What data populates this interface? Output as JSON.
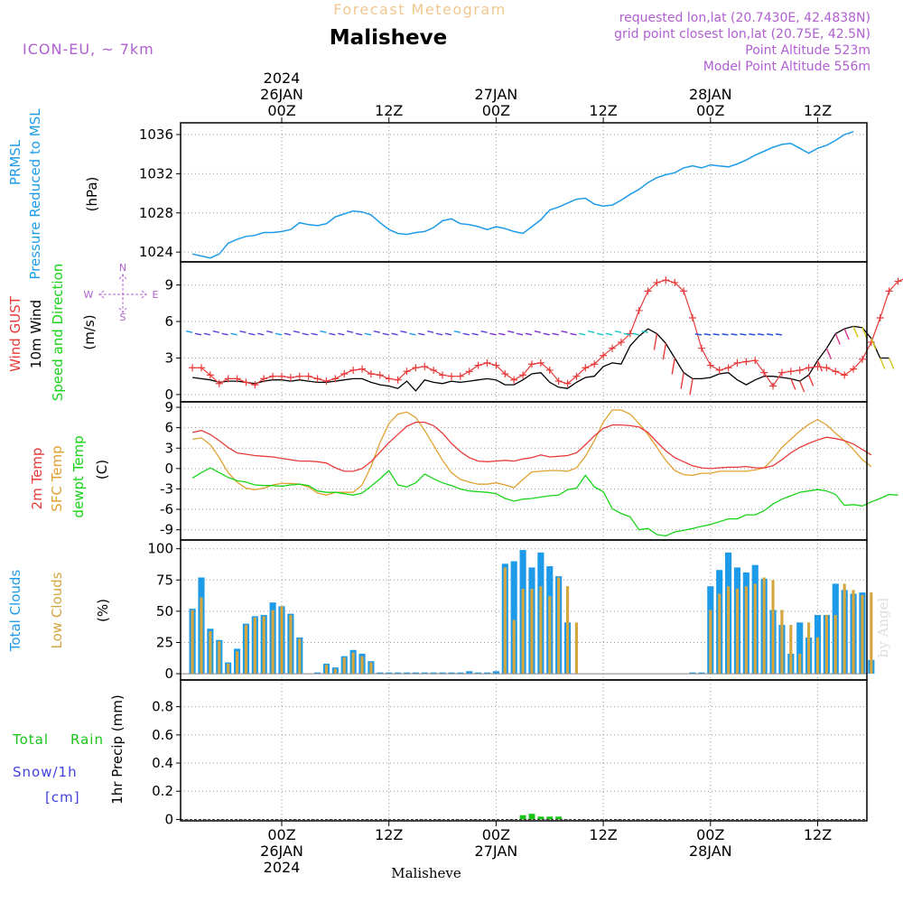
{
  "header": {
    "forecast_title": "Forecast Meteogram",
    "location": "Malisheve",
    "model": "ICON-EU, ~ 7km",
    "requested": "requested lon,lat (20.7430E, 42.4838N)",
    "grid_point": "grid point closest lon,lat (20.75E, 42.5N)",
    "point_altitude": "Point Altitude 523m",
    "model_altitude": "Model Point Altitude 556m",
    "footer_location": "Malisheve",
    "credit": "by Angel"
  },
  "colors": {
    "pressure": "#1e9be8",
    "gust": "#e83a3a",
    "wind": "#000000",
    "temp2m": "#e83a3a",
    "sfc": "#e0a030",
    "dewpt": "#18d418",
    "total_cloud": "#1e9be8",
    "low_cloud": "#d4a640",
    "rain": "#18c418",
    "snow": "#4040e0",
    "purple": "#b060d0",
    "title_orange": "#f0c890"
  },
  "time_axis": {
    "top_labels": [
      {
        "line1": "2024",
        "line2": "26JAN",
        "line3": "00Z",
        "hour": 0
      },
      {
        "line1": "",
        "line2": "",
        "line3": "12Z",
        "hour": 12
      },
      {
        "line1": "",
        "line2": "27JAN",
        "line3": "00Z",
        "hour": 24
      },
      {
        "line1": "",
        "line2": "",
        "line3": "12Z",
        "hour": 36
      },
      {
        "line1": "",
        "line2": "28JAN",
        "line3": "00Z",
        "hour": 48
      },
      {
        "line1": "",
        "line2": "",
        "line3": "12Z",
        "hour": 60
      }
    ],
    "bottom_labels": [
      {
        "line1": "00Z",
        "line2": "26JAN",
        "line3": "2024",
        "hour": 0
      },
      {
        "line1": "12Z",
        "line2": "",
        "line3": "",
        "hour": 12
      },
      {
        "line1": "00Z",
        "line2": "27JAN",
        "line3": "",
        "hour": 24
      },
      {
        "line1": "12Z",
        "line2": "",
        "line3": "",
        "hour": 36
      },
      {
        "line1": "00Z",
        "line2": "28JAN",
        "line3": "",
        "hour": 48
      },
      {
        "line1": "12Z",
        "line2": "",
        "line3": "",
        "hour": 60
      }
    ]
  },
  "panels": {
    "pressure": {
      "label1": "PRMSL",
      "label2": "Pressure Reduced to MSL",
      "unit": "(hPa)",
      "ticks": [
        "1024",
        "1028",
        "1032",
        "1036"
      ]
    },
    "wind": {
      "label_gust": "Wind GUST",
      "label_wind": "10m Wind",
      "label_dir": "Speed and Direction",
      "unit": "(m/s)",
      "ticks": [
        "0",
        "3",
        "6",
        "9"
      ],
      "compass_w": "W",
      "compass_e": "E",
      "compass_n": "N",
      "compass_s": "S"
    },
    "temp": {
      "label_2m": "2m Temp",
      "label_sfc": "SFC Temp",
      "label_dew": "dewpt Temp",
      "unit": "(C)",
      "ticks": [
        "-9",
        "-6",
        "-3",
        "0",
        "3",
        "6",
        "9"
      ]
    },
    "cloud": {
      "label_total": "Total Clouds",
      "label_low": "Low Clouds",
      "unit": "(%)",
      "ticks": [
        "0",
        "25",
        "50",
        "75",
        "100"
      ]
    },
    "precip": {
      "label_total": "Total",
      "label_rain": "Rain",
      "label_snow": "Snow/1h",
      "label_cm": "[cm]",
      "label_axis": "1hr Precip (mm)",
      "ticks": [
        "0",
        "0.2",
        "0.4",
        "0.6",
        "0.8"
      ]
    }
  },
  "chart_data": [
    {
      "type": "line",
      "name": "PRMSL",
      "x_start_hour": -10,
      "x_step": 1,
      "ylim": [
        1023,
        1037.2
      ],
      "values": [
        1023.8,
        1023.6,
        1023.4,
        1023.8,
        1024.9,
        1025.3,
        1025.6,
        1025.7,
        1026.0,
        1026.0,
        1026.1,
        1026.3,
        1027.0,
        1026.8,
        1026.7,
        1026.9,
        1027.6,
        1027.9,
        1028.2,
        1028.1,
        1027.8,
        1027.0,
        1026.3,
        1025.9,
        1025.8,
        1026.0,
        1026.1,
        1026.5,
        1027.2,
        1027.4,
        1026.9,
        1026.8,
        1026.6,
        1026.3,
        1026.6,
        1026.4,
        1026.1,
        1025.9,
        1026.6,
        1027.3,
        1028.3,
        1028.6,
        1029.0,
        1029.4,
        1029.5,
        1028.9,
        1028.7,
        1028.8,
        1029.3,
        1029.9,
        1030.4,
        1031.1,
        1031.6,
        1031.9,
        1032.1,
        1032.6,
        1032.8,
        1032.6,
        1032.9,
        1032.8,
        1032.7,
        1033.0,
        1033.4,
        1033.9,
        1034.3,
        1034.7,
        1035.0,
        1035.1,
        1034.6,
        1034.1,
        1034.6,
        1034.9,
        1035.4,
        1036.0,
        1036.3
      ]
    },
    {
      "type": "line",
      "name": "Wind GUST",
      "x_start_hour": -10,
      "x_step": 1,
      "ylim": [
        -0.6,
        10.9
      ],
      "gust": [
        2.2,
        2.2,
        1.6,
        0.9,
        1.3,
        1.3,
        1.0,
        0.8,
        1.3,
        1.5,
        1.5,
        1.4,
        1.5,
        1.5,
        1.3,
        1.1,
        1.3,
        1.7,
        2.0,
        2.1,
        1.7,
        1.6,
        1.3,
        1.2,
        1.9,
        2.2,
        2.3,
        2.0,
        1.6,
        1.5,
        1.5,
        1.9,
        2.4,
        2.6,
        2.4,
        1.7,
        1.2,
        1.6,
        2.5,
        2.6,
        2.0,
        1.1,
        0.9,
        1.5,
        2.2,
        2.5,
        3.2,
        3.8,
        4.3,
        5.0,
        6.9,
        8.5,
        9.2,
        9.4,
        9.2,
        8.5,
        6.3,
        3.8,
        2.4,
        2.0,
        2.2,
        2.6,
        2.7,
        2.8,
        1.8,
        0.7,
        1.8,
        1.9,
        2.0,
        2.2,
        2.3,
        2.2,
        1.9,
        1.6,
        2.1,
        2.9,
        4.3,
        6.3,
        8.5,
        9.3,
        9.6,
        9.9,
        9.6,
        7.6,
        6.3
      ],
      "wind": [
        1.4,
        1.3,
        1.2,
        1.0,
        1.1,
        1.1,
        1.0,
        0.9,
        1.1,
        1.2,
        1.2,
        1.1,
        1.2,
        1.1,
        1.0,
        1.0,
        1.1,
        1.2,
        1.3,
        1.3,
        1.0,
        0.8,
        0.7,
        0.5,
        1.1,
        0.3,
        1.2,
        1.0,
        0.9,
        1.1,
        1.0,
        1.1,
        1.2,
        1.3,
        1.2,
        0.8,
        0.8,
        1.2,
        1.7,
        1.8,
        1.0,
        0.6,
        0.5,
        1.0,
        1.4,
        1.5,
        2.3,
        2.6,
        2.5,
        4.0,
        4.8,
        5.4,
        5.0,
        4.2,
        3.0,
        1.8,
        1.3,
        1.3,
        1.4,
        1.7,
        1.8,
        1.2,
        0.8,
        1.2,
        1.5,
        1.5,
        1.4,
        1.3,
        1.1,
        1.6,
        2.8,
        3.8,
        5.0,
        5.4,
        5.6,
        5.5,
        4.6,
        3.0,
        3.0
      ]
    },
    {
      "type": "line",
      "name": "Temperature",
      "x_start_hour": -10,
      "x_step": 1,
      "ylim": [
        -10.5,
        9.8
      ],
      "temp2m": [
        5.3,
        5.6,
        5.0,
        4.1,
        3.1,
        2.3,
        2.1,
        1.9,
        1.8,
        1.7,
        1.5,
        1.3,
        1.1,
        1.1,
        1.0,
        0.8,
        0.1,
        -0.4,
        -0.4,
        0.0,
        1.0,
        2.4,
        3.8,
        5.0,
        6.2,
        6.8,
        6.8,
        6.3,
        5.2,
        3.7,
        2.5,
        1.6,
        1.1,
        1.0,
        1.1,
        1.2,
        1.1,
        1.4,
        1.6,
        2.0,
        1.7,
        1.8,
        1.9,
        2.3,
        3.5,
        4.8,
        5.9,
        6.4,
        6.4,
        6.3,
        6.1,
        5.3,
        3.9,
        2.6,
        1.6,
        1.0,
        0.4,
        0.1,
        0.0,
        0.1,
        0.2,
        0.2,
        0.3,
        0.1,
        0.1,
        0.4,
        1.3,
        2.3,
        3.1,
        3.7,
        4.2,
        4.6,
        4.4,
        4.1,
        3.6,
        2.8,
        2.0
      ],
      "sfc": [
        4.3,
        4.5,
        3.5,
        1.6,
        -0.6,
        -2.0,
        -2.9,
        -3.1,
        -2.9,
        -2.4,
        -2.2,
        -2.2,
        -2.3,
        -2.7,
        -3.6,
        -3.9,
        -3.5,
        -3.5,
        -3.5,
        -2.4,
        0.3,
        3.8,
        6.6,
        8.0,
        8.3,
        7.5,
        5.6,
        3.4,
        1.2,
        -0.6,
        -1.6,
        -2.0,
        -2.3,
        -2.3,
        -2.1,
        -2.4,
        -2.8,
        -1.6,
        -0.5,
        -0.4,
        -0.3,
        -0.3,
        -0.4,
        0.1,
        1.8,
        4.1,
        6.8,
        8.6,
        8.6,
        8.0,
        6.6,
        5.0,
        3.1,
        1.2,
        -0.3,
        -0.9,
        -1.0,
        -0.7,
        -0.7,
        -0.4,
        -0.4,
        -0.4,
        -0.4,
        -0.2,
        0.1,
        1.4,
        3.1,
        4.3,
        5.5,
        6.5,
        7.2,
        6.4,
        5.2,
        4.1,
        2.8,
        1.3,
        0.3
      ],
      "dewpt": [
        -1.4,
        -0.6,
        0.1,
        -0.6,
        -1.3,
        -1.8,
        -2.0,
        -2.4,
        -2.5,
        -2.5,
        -2.6,
        -2.4,
        -2.3,
        -2.5,
        -3.3,
        -3.5,
        -3.5,
        -3.7,
        -3.9,
        -3.6,
        -2.6,
        -1.5,
        -0.3,
        -2.4,
        -2.7,
        -2.1,
        -0.8,
        -1.5,
        -2.1,
        -2.5,
        -3.0,
        -3.3,
        -3.4,
        -3.5,
        -3.7,
        -4.4,
        -4.8,
        -4.5,
        -4.4,
        -4.2,
        -4.0,
        -3.9,
        -3.1,
        -2.9,
        -1.0,
        -2.7,
        -3.4,
        -5.9,
        -6.6,
        -7.1,
        -9.0,
        -8.8,
        -9.7,
        -9.9,
        -9.3,
        -9.1,
        -8.8,
        -8.5,
        -8.2,
        -7.8,
        -7.4,
        -7.4,
        -6.8,
        -6.8,
        -6.2,
        -5.2,
        -4.5,
        -4.0,
        -3.5,
        -3.3,
        -3.1,
        -3.3,
        -3.8,
        -5.4,
        -5.3,
        -5.5,
        -4.9,
        -4.4,
        -3.8,
        -3.9
      ],
      "x_start_hour_sfc": -10
    },
    {
      "type": "bar",
      "name": "Clouds",
      "x_start_hour": -10,
      "x_step": 1,
      "ylim": [
        -5,
        107
      ],
      "total": [
        52,
        77,
        36,
        27,
        9,
        20,
        40,
        46,
        47,
        57,
        54,
        48,
        29,
        0,
        1,
        8,
        5,
        14,
        19,
        16,
        10,
        1,
        1,
        1,
        1,
        1,
        1,
        1,
        1,
        1,
        1,
        2,
        1,
        1,
        2,
        88,
        90,
        99,
        85,
        97,
        86,
        78,
        41,
        0,
        0,
        0,
        0,
        0,
        0,
        0,
        0,
        0,
        0,
        0,
        0,
        0,
        1,
        1,
        70,
        83,
        97,
        85,
        81,
        87,
        76,
        51,
        39,
        16,
        41,
        29,
        47,
        47,
        72,
        67,
        64,
        65,
        11
      ],
      "low": [
        51,
        61,
        34,
        26,
        8,
        18,
        39,
        45,
        46,
        51,
        54,
        47,
        28,
        0,
        0,
        7,
        4,
        13,
        17,
        14,
        9,
        0,
        0,
        0,
        0,
        0,
        0,
        0,
        0,
        0,
        0,
        0,
        0,
        0,
        0,
        85,
        43,
        68,
        68,
        70,
        62,
        77,
        70,
        41,
        0,
        0,
        0,
        0,
        0,
        0,
        0,
        0,
        0,
        0,
        0,
        0,
        0,
        0,
        51,
        64,
        70,
        68,
        70,
        72,
        77,
        75,
        51,
        39,
        16,
        41,
        29,
        47,
        47,
        72,
        67,
        63,
        65,
        11
      ]
    },
    {
      "type": "bar",
      "name": "1hr Precip",
      "x_start_hour": 27,
      "x_step": 1,
      "ylim": [
        -0.01,
        0.99
      ],
      "rain": [
        0.03,
        0.04,
        0.02,
        0.02,
        0.02
      ],
      "snow": [
        0,
        0,
        0,
        0,
        0
      ]
    }
  ]
}
